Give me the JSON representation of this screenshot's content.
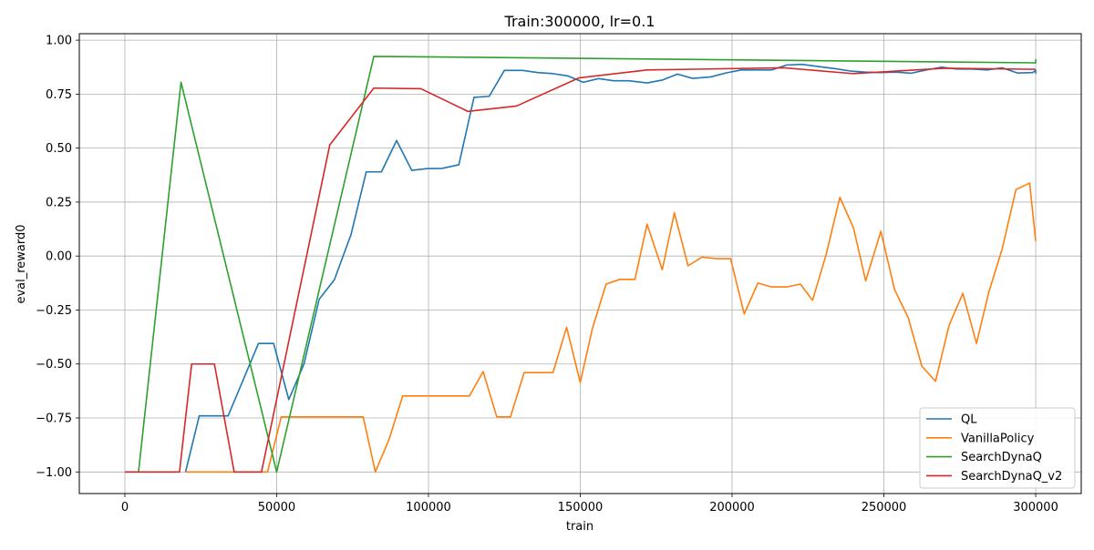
{
  "chart_data": {
    "type": "line",
    "title": "Train:300000, lr=0.1",
    "xlabel": "train",
    "ylabel": "eval_reward0",
    "xlim": [
      -15000,
      315000
    ],
    "ylim": [
      -1.1,
      1.03
    ],
    "xticks": [
      0,
      50000,
      100000,
      150000,
      200000,
      250000,
      300000
    ],
    "xtick_labels": [
      "0",
      "50000",
      "100000",
      "150000",
      "200000",
      "250000",
      "300000"
    ],
    "yticks": [
      -1.0,
      -0.75,
      -0.5,
      -0.25,
      0.0,
      0.25,
      0.5,
      0.75,
      1.0
    ],
    "ytick_labels": [
      "−1.00",
      "−0.75",
      "−0.50",
      "−0.25",
      "0.00",
      "0.25",
      "0.50",
      "0.75",
      "1.00"
    ],
    "grid": true,
    "legend_position": "lower-right",
    "series": [
      {
        "name": "QL",
        "color": "#1f77b4",
        "points": [
          [
            20000,
            -1.0
          ],
          [
            24500,
            -0.74
          ],
          [
            29000,
            -0.74
          ],
          [
            34000,
            -0.74
          ],
          [
            44000,
            -0.405
          ],
          [
            49000,
            -0.405
          ],
          [
            54000,
            -0.665
          ],
          [
            59000,
            -0.5
          ],
          [
            64000,
            -0.2
          ],
          [
            69000,
            -0.11
          ],
          [
            74500,
            0.1
          ],
          [
            79500,
            0.39
          ],
          [
            84500,
            0.39
          ],
          [
            89500,
            0.535
          ],
          [
            94500,
            0.397
          ],
          [
            99500,
            0.405
          ],
          [
            104500,
            0.406
          ],
          [
            110000,
            0.423
          ],
          [
            115000,
            0.735
          ],
          [
            120000,
            0.74
          ],
          [
            125000,
            0.86
          ],
          [
            131000,
            0.86
          ],
          [
            136000,
            0.85
          ],
          [
            141000,
            0.845
          ],
          [
            146000,
            0.834
          ],
          [
            151000,
            0.805
          ],
          [
            156000,
            0.822
          ],
          [
            161000,
            0.812
          ],
          [
            166000,
            0.812
          ],
          [
            172000,
            0.802
          ],
          [
            177000,
            0.815
          ],
          [
            182000,
            0.843
          ],
          [
            187000,
            0.823
          ],
          [
            193000,
            0.83
          ],
          [
            198000,
            0.848
          ],
          [
            203000,
            0.862
          ],
          [
            208000,
            0.862
          ],
          [
            213000,
            0.862
          ],
          [
            218000,
            0.885
          ],
          [
            223000,
            0.888
          ],
          [
            229000,
            0.877
          ],
          [
            234000,
            0.868
          ],
          [
            239000,
            0.857
          ],
          [
            244000,
            0.852
          ],
          [
            249000,
            0.85
          ],
          [
            254000,
            0.852
          ],
          [
            259000,
            0.847
          ],
          [
            264000,
            0.862
          ],
          [
            269000,
            0.875
          ],
          [
            274000,
            0.866
          ],
          [
            279000,
            0.866
          ],
          [
            284000,
            0.862
          ],
          [
            289000,
            0.872
          ],
          [
            294000,
            0.848
          ],
          [
            299000,
            0.85
          ],
          [
            300000,
            0.86
          ],
          [
            300000,
            0.845
          ]
        ]
      },
      {
        "name": "VanillaPolicy",
        "color": "#ff7f0e",
        "points": [
          [
            20000,
            -1.0
          ],
          [
            25000,
            -1.0
          ],
          [
            30000,
            -1.0
          ],
          [
            35000,
            -1.0
          ],
          [
            40000,
            -1.0
          ],
          [
            47000,
            -1.0
          ],
          [
            51500,
            -0.745
          ],
          [
            56000,
            -0.745
          ],
          [
            61000,
            -0.745
          ],
          [
            66000,
            -0.745
          ],
          [
            71000,
            -0.745
          ],
          [
            78500,
            -0.745
          ],
          [
            82500,
            -1.0
          ],
          [
            87000,
            -0.85
          ],
          [
            91500,
            -0.648
          ],
          [
            96500,
            -0.648
          ],
          [
            101000,
            -0.648
          ],
          [
            106000,
            -0.648
          ],
          [
            113500,
            -0.648
          ],
          [
            118000,
            -0.535
          ],
          [
            122500,
            -0.745
          ],
          [
            127000,
            -0.745
          ],
          [
            131500,
            -0.54
          ],
          [
            136500,
            -0.54
          ],
          [
            141000,
            -0.54
          ],
          [
            145500,
            -0.33
          ],
          [
            150000,
            -0.585
          ],
          [
            154000,
            -0.335
          ],
          [
            158500,
            -0.13
          ],
          [
            163000,
            -0.108
          ],
          [
            168000,
            -0.108
          ],
          [
            172000,
            0.148
          ],
          [
            177000,
            -0.063
          ],
          [
            181000,
            0.2
          ],
          [
            185500,
            -0.045
          ],
          [
            190000,
            -0.005
          ],
          [
            195000,
            -0.012
          ],
          [
            199500,
            -0.012
          ],
          [
            204000,
            -0.268
          ],
          [
            208500,
            -0.125
          ],
          [
            213000,
            -0.143
          ],
          [
            218000,
            -0.143
          ],
          [
            222500,
            -0.13
          ],
          [
            226500,
            -0.205
          ],
          [
            231000,
            0.008
          ],
          [
            235500,
            0.272
          ],
          [
            240000,
            0.13
          ],
          [
            244000,
            -0.115
          ],
          [
            249000,
            0.115
          ],
          [
            253500,
            -0.155
          ],
          [
            258000,
            -0.285
          ],
          [
            262500,
            -0.51
          ],
          [
            267000,
            -0.58
          ],
          [
            271500,
            -0.32
          ],
          [
            276000,
            -0.173
          ],
          [
            280500,
            -0.405
          ],
          [
            284500,
            -0.17
          ],
          [
            289000,
            0.035
          ],
          [
            293500,
            0.308
          ],
          [
            298000,
            0.338
          ],
          [
            300000,
            0.07
          ]
        ]
      },
      {
        "name": "SearchDynaQ",
        "color": "#2ca02c",
        "points": [
          [
            4500,
            -1.0
          ],
          [
            18500,
            0.805
          ],
          [
            50000,
            -1.0
          ],
          [
            82000,
            0.925
          ],
          [
            300000,
            0.895
          ],
          [
            300000,
            0.912
          ]
        ]
      },
      {
        "name": "SearchDynaQ_v2",
        "color": "#d62728",
        "points": [
          [
            0,
            -1.0
          ],
          [
            18000,
            -1.0
          ],
          [
            22000,
            -0.5
          ],
          [
            29500,
            -0.5
          ],
          [
            36000,
            -1.0
          ],
          [
            45000,
            -1.0
          ],
          [
            67500,
            0.515
          ],
          [
            82000,
            0.778
          ],
          [
            97500,
            0.775
          ],
          [
            113000,
            0.67
          ],
          [
            129000,
            0.695
          ],
          [
            149500,
            0.825
          ],
          [
            172000,
            0.862
          ],
          [
            217000,
            0.872
          ],
          [
            240000,
            0.845
          ],
          [
            270000,
            0.87
          ],
          [
            300000,
            0.865
          ]
        ]
      }
    ]
  }
}
